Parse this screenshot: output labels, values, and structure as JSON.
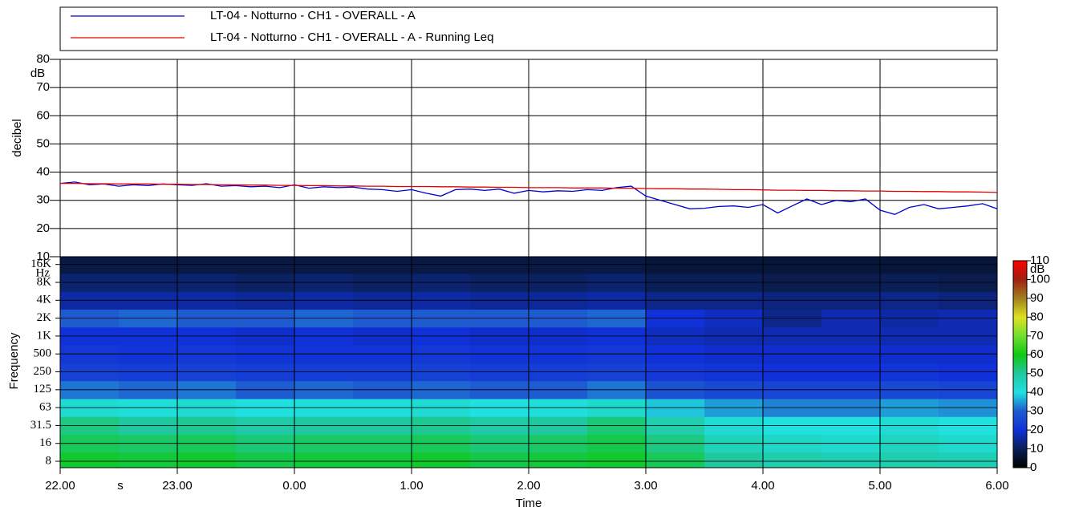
{
  "chart_data": [
    {
      "type": "line",
      "ylabel": "decibel",
      "y_unit": "dB",
      "ylim": [
        10,
        80
      ],
      "yticks": [
        10,
        20,
        30,
        40,
        50,
        60,
        70,
        80
      ],
      "xlim": [
        22,
        30
      ],
      "grid": true,
      "x": [
        22,
        22.125,
        22.25,
        22.375,
        22.5,
        22.625,
        22.75,
        22.875,
        23,
        23.125,
        23.25,
        23.375,
        23.5,
        23.625,
        23.75,
        23.875,
        24,
        24.125,
        24.25,
        24.375,
        24.5,
        24.625,
        24.75,
        24.875,
        25,
        25.125,
        25.25,
        25.375,
        25.5,
        25.625,
        25.75,
        25.875,
        26,
        26.125,
        26.25,
        26.375,
        26.5,
        26.625,
        26.75,
        26.875,
        27,
        27.125,
        27.25,
        27.375,
        27.5,
        27.625,
        27.75,
        27.875,
        28,
        28.125,
        28.25,
        28.375,
        28.5,
        28.625,
        28.75,
        28.875,
        29,
        29.125,
        29.25,
        29.375,
        29.5,
        29.625,
        29.75,
        29.875,
        30
      ],
      "series": [
        {
          "name": "LT-04 - Notturno - CH1 - OVERALL - A",
          "color": "#0000d0",
          "values": [
            36,
            36.5,
            35.5,
            35.8,
            35,
            35.5,
            35.2,
            35.8,
            35.5,
            35.3,
            35.9,
            35,
            35.2,
            34.8,
            35,
            34.5,
            35.5,
            34.3,
            34.8,
            34.5,
            34.7,
            34,
            33.8,
            33.2,
            33.8,
            32.5,
            31.5,
            33.8,
            34,
            33.5,
            34,
            32.5,
            33.5,
            33,
            33.4,
            33.2,
            33.8,
            33.5,
            34.5,
            35,
            31.5,
            30,
            28.5,
            27,
            27.2,
            27.8,
            28,
            27.5,
            28.5,
            25.5,
            28,
            30.5,
            28.5,
            30,
            29.5,
            30.5,
            26.5,
            25,
            27.5,
            28.5,
            27,
            27.5,
            28,
            28.8,
            27
          ]
        },
        {
          "name": "LT-04 - Notturno - CH1 - OVERALL - A - Running Leq",
          "color": "#e00000",
          "values": [
            36.0,
            36.0,
            35.9,
            35.9,
            35.8,
            35.8,
            35.8,
            35.7,
            35.7,
            35.6,
            35.6,
            35.5,
            35.5,
            35.4,
            35.4,
            35.3,
            35.3,
            35.2,
            35.2,
            35.1,
            35.1,
            35.0,
            35.0,
            34.9,
            34.9,
            34.9,
            34.8,
            34.8,
            34.7,
            34.7,
            34.6,
            34.6,
            34.5,
            34.5,
            34.5,
            34.4,
            34.4,
            34.4,
            34.3,
            34.3,
            34.2,
            34.1,
            34.1,
            34.0,
            34.0,
            33.9,
            33.8,
            33.8,
            33.7,
            33.6,
            33.6,
            33.5,
            33.5,
            33.4,
            33.4,
            33.3,
            33.3,
            33.2,
            33.2,
            33.1,
            33.1,
            33.0,
            33.0,
            32.9,
            32.8
          ]
        }
      ]
    },
    {
      "type": "heatmap",
      "xlabel": "Time",
      "x_unit": "s",
      "ylabel": "Frequency",
      "y_unit": "Hz",
      "xlim": [
        22,
        30
      ],
      "xticks": [
        {
          "value": 22,
          "label": "22.00"
        },
        {
          "value": 23,
          "label": "23.00"
        },
        {
          "value": 24,
          "label": "0.00"
        },
        {
          "value": 25,
          "label": "1.00"
        },
        {
          "value": 26,
          "label": "2.00"
        },
        {
          "value": 27,
          "label": "3.00"
        },
        {
          "value": 28,
          "label": "4.00"
        },
        {
          "value": 29,
          "label": "5.00"
        },
        {
          "value": 30,
          "label": "6.00"
        }
      ],
      "x_bins": [
        22,
        22.5,
        23,
        23.5,
        24,
        24.5,
        25,
        25.5,
        26,
        26.5,
        27,
        27.5,
        28,
        28.5,
        29,
        29.5,
        30
      ],
      "categories": [
        "8",
        "16",
        "31.5",
        "63",
        "125",
        "250",
        "500",
        "1K",
        "2K",
        "4K",
        "8K",
        "16K"
      ],
      "values": [
        [
          58,
          57,
          58,
          56,
          57,
          57,
          58,
          56,
          57,
          58,
          55,
          50,
          48,
          47,
          48,
          47
        ],
        [
          55,
          54,
          55,
          53,
          54,
          54,
          55,
          53,
          54,
          56,
          52,
          46,
          44,
          43,
          45,
          43
        ],
        [
          52,
          50,
          51,
          49,
          50,
          50,
          51,
          49,
          50,
          53,
          48,
          42,
          40,
          40,
          42,
          40
        ],
        [
          42,
          41,
          42,
          40,
          41,
          41,
          42,
          40,
          41,
          43,
          38,
          35,
          33,
          33,
          35,
          34
        ],
        [
          32,
          31,
          32,
          30,
          31,
          30,
          31,
          30,
          30,
          32,
          28,
          26,
          25,
          25,
          26,
          25
        ],
        [
          24,
          23,
          24,
          23,
          23,
          23,
          24,
          23,
          23,
          24,
          22,
          21,
          20,
          20,
          21,
          20
        ],
        [
          22,
          21,
          22,
          21,
          21,
          21,
          22,
          21,
          21,
          22,
          20,
          19,
          19,
          19,
          19,
          19
        ],
        [
          20,
          20,
          20,
          19,
          20,
          19,
          20,
          19,
          19,
          20,
          18,
          17,
          17,
          17,
          17,
          17
        ],
        [
          30,
          31,
          30,
          30,
          31,
          30,
          30,
          30,
          30,
          31,
          20,
          18,
          14,
          17,
          16,
          17
        ],
        [
          16,
          16,
          16,
          15,
          16,
          15,
          16,
          15,
          15,
          16,
          14,
          14,
          13,
          13,
          14,
          13
        ],
        [
          12,
          12,
          12,
          11,
          12,
          11,
          12,
          11,
          11,
          12,
          10,
          10,
          9,
          9,
          10,
          9
        ],
        [
          8,
          8,
          8,
          8,
          8,
          8,
          8,
          8,
          8,
          8,
          7,
          7,
          7,
          7,
          7,
          7
        ]
      ],
      "colorbar": {
        "label": "dB",
        "lim": [
          0,
          110
        ],
        "ticks": [
          0,
          10,
          20,
          30,
          40,
          50,
          60,
          70,
          80,
          90,
          100,
          110
        ],
        "colors": [
          "#000000",
          "#0a1f55",
          "#1030d8",
          "#1e5ad0",
          "#20e0e0",
          "#20c8a0",
          "#10c810",
          "#70e030",
          "#e0e020",
          "#a08020",
          "#a02010",
          "#ff0000"
        ]
      }
    }
  ]
}
